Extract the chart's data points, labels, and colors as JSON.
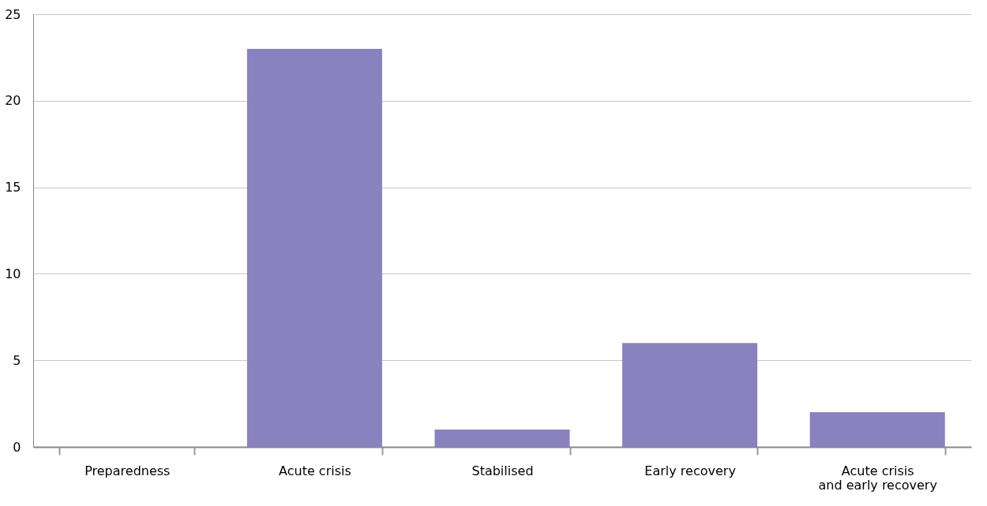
{
  "chart_data": {
    "type": "bar",
    "categories": [
      "Preparedness",
      "Acute crisis",
      "Stabilised",
      "Early recovery",
      "Acute crisis\nand early recovery"
    ],
    "values": [
      0,
      23,
      1,
      6,
      2
    ],
    "color": "#8882bf",
    "ylim": [
      0,
      25
    ],
    "yticks": [
      0,
      5,
      10,
      15,
      20,
      25
    ],
    "grid": "y"
  }
}
